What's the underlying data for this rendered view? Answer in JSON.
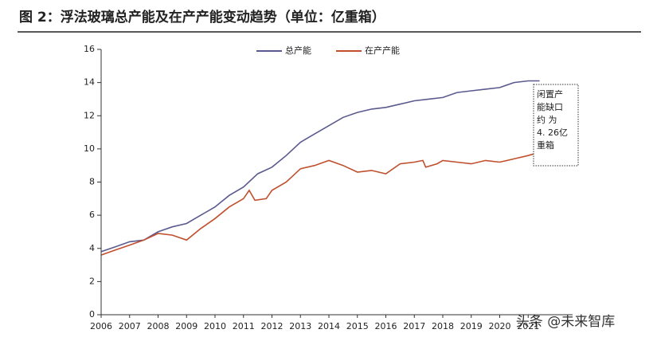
{
  "chart_data": {
    "type": "line",
    "title": "图 2：浮法玻璃总产能及在产产能变动趋势（单位：亿重箱）",
    "xlim": [
      2006,
      2022
    ],
    "xticks": [
      2006,
      2007,
      2008,
      2009,
      2010,
      2011,
      2012,
      2013,
      2014,
      2015,
      2016,
      2017,
      2018,
      2019,
      2020,
      2021
    ],
    "ylim": [
      0,
      16
    ],
    "yticks": [
      0,
      2,
      4,
      6,
      8,
      10,
      12,
      14,
      16
    ],
    "legend": "top",
    "series": [
      {
        "name": "总产能",
        "color": "#5b5a8f",
        "x": [
          2006,
          2006.5,
          2007,
          2007.5,
          2008,
          2008.5,
          2009,
          2009.5,
          2010,
          2010.5,
          2011,
          2011.5,
          2012,
          2012.5,
          2013,
          2013.5,
          2014,
          2014.5,
          2015,
          2015.5,
          2016,
          2016.5,
          2017,
          2017.5,
          2018,
          2018.5,
          2019,
          2019.5,
          2020,
          2020.5,
          2021,
          2021.4
        ],
        "values": [
          3.8,
          4.1,
          4.4,
          4.5,
          5.0,
          5.3,
          5.5,
          6.0,
          6.5,
          7.2,
          7.7,
          8.5,
          8.9,
          9.6,
          10.4,
          10.9,
          11.4,
          11.9,
          12.2,
          12.4,
          12.5,
          12.7,
          12.9,
          13.0,
          13.1,
          13.4,
          13.5,
          13.6,
          13.7,
          14.0,
          14.1,
          14.1
        ]
      },
      {
        "name": "在产产能",
        "color": "#c0502d",
        "x": [
          2006,
          2006.5,
          2007,
          2007.5,
          2008,
          2008.5,
          2009,
          2009.5,
          2010,
          2010.5,
          2011,
          2011.2,
          2011.4,
          2011.8,
          2012,
          2012.5,
          2013,
          2013.5,
          2014,
          2014.5,
          2015,
          2015.5,
          2016,
          2016.5,
          2017,
          2017.3,
          2017.4,
          2017.8,
          2018,
          2018.5,
          2019,
          2019.5,
          2020,
          2020.5,
          2021,
          2021.4
        ],
        "values": [
          3.6,
          3.9,
          4.2,
          4.5,
          4.9,
          4.8,
          4.5,
          5.2,
          5.8,
          6.5,
          7.0,
          7.5,
          6.9,
          7.0,
          7.5,
          8.0,
          8.8,
          9.0,
          9.3,
          9.0,
          8.6,
          8.7,
          8.5,
          9.1,
          9.2,
          9.3,
          8.9,
          9.1,
          9.3,
          9.2,
          9.1,
          9.3,
          9.2,
          9.4,
          9.6,
          9.8
        ]
      }
    ],
    "annotation": [
      "闲置产",
      "能缺口",
      "约  为",
      "4. 26亿",
      "重箱"
    ],
    "watermark": "头条 @未来智库"
  }
}
